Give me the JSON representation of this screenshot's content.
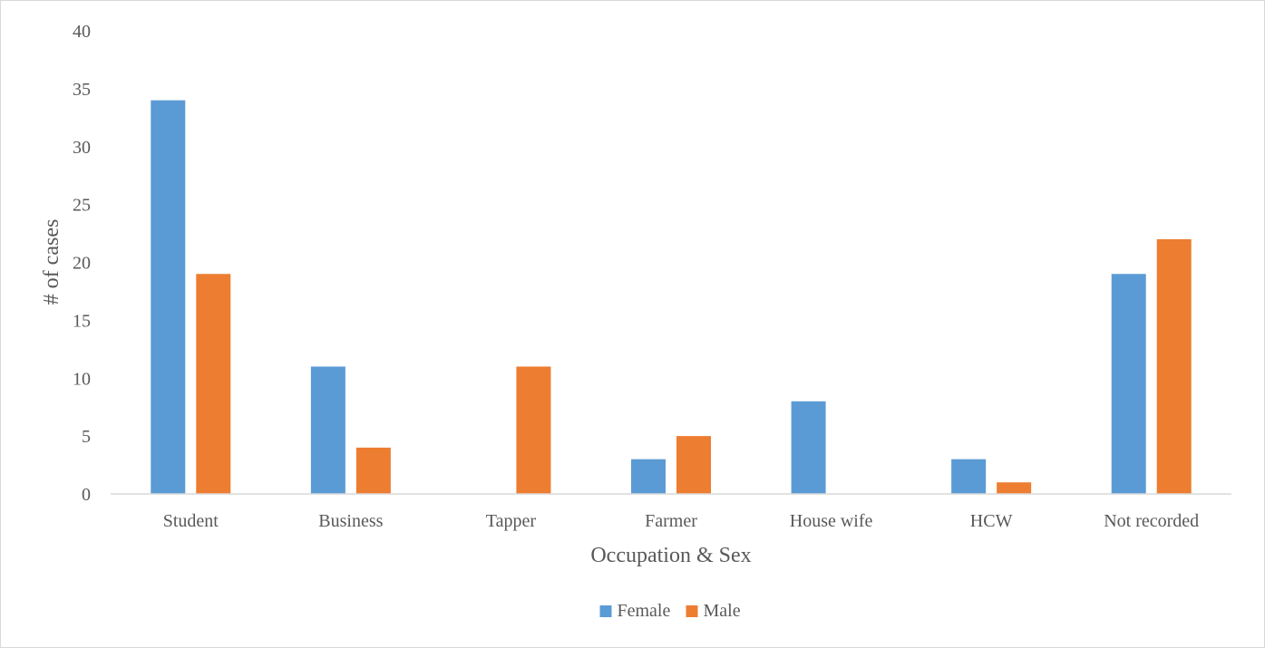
{
  "chart_data": {
    "type": "bar",
    "categories": [
      "Student",
      "Business",
      "Tapper",
      "Farmer",
      "House wife",
      "HCW",
      "Not recorded"
    ],
    "series": [
      {
        "name": "Female",
        "values": [
          34,
          11,
          0,
          3,
          8,
          3,
          19
        ],
        "color": "#5b9bd5"
      },
      {
        "name": "Male",
        "values": [
          19,
          4,
          11,
          5,
          0,
          1,
          22
        ],
        "color": "#ed7d31"
      }
    ],
    "xlabel": "Occupation & Sex",
    "ylabel": "# of cases",
    "ylim": [
      0,
      40
    ],
    "yticks": [
      0,
      5,
      10,
      15,
      20,
      25,
      30,
      35,
      40
    ],
    "grid": false,
    "legend": "bottom"
  }
}
